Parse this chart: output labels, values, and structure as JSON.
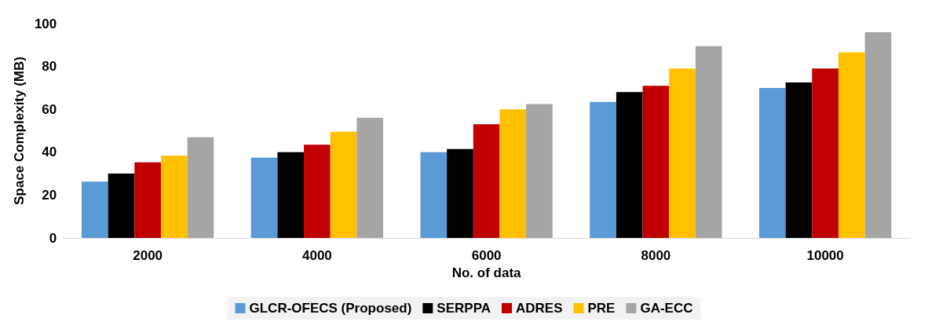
{
  "chart_data": {
    "type": "bar",
    "xlabel": "No. of data",
    "ylabel": "Space Complexity (MB)",
    "categories": [
      "2000",
      "4000",
      "6000",
      "8000",
      "10000"
    ],
    "series": [
      {
        "name": "GLCR-OFECS (Proposed)",
        "color": "#5b9bd5",
        "values": [
          26.3,
          37.5,
          40,
          63.5,
          70
        ]
      },
      {
        "name": "SERPPA",
        "color": "#000000",
        "values": [
          30,
          40,
          41.5,
          68,
          72.5
        ]
      },
      {
        "name": "ADRES",
        "color": "#c00000",
        "values": [
          35.3,
          43.5,
          53,
          71,
          79
        ]
      },
      {
        "name": "PRE",
        "color": "#ffc000",
        "values": [
          38.4,
          49.5,
          60,
          79,
          86.5
        ]
      },
      {
        "name": "GA-ECC",
        "color": "#a5a5a5",
        "values": [
          47,
          56,
          62.5,
          89.5,
          96
        ]
      }
    ],
    "ylim": [
      0,
      100
    ],
    "yticks": [
      0,
      20,
      40,
      60,
      80,
      100
    ],
    "grid": false,
    "legend": "bottom"
  }
}
